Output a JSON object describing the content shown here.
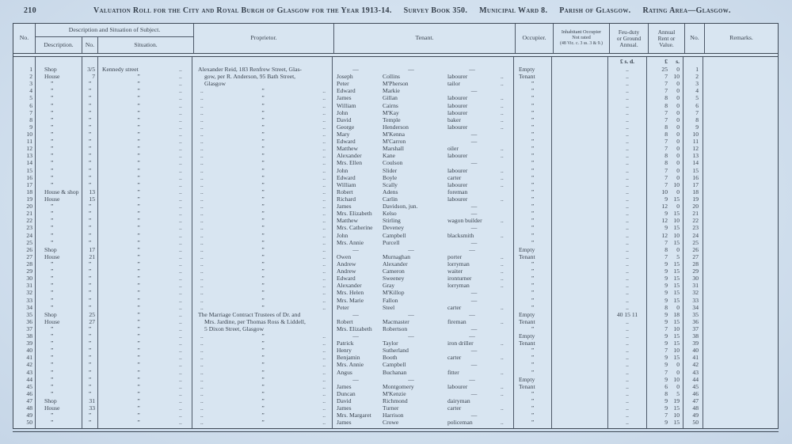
{
  "page": {
    "number": "210",
    "title": "Valuation Roll for the City and Royal Burgh of Glasgow for the Year 1913-14.",
    "survey_book": "Survey Book 350.",
    "ward": "Municipal Ward 8.",
    "parish": "Parish of Glasgow.",
    "rating_area": "Rating Area—Glasgow."
  },
  "table": {
    "col_no": "No.",
    "group_header": "Description and Situation of Subject.",
    "sub_description": "Description.",
    "sub_no": "No.",
    "sub_situation": "Situation.",
    "col_proprietor": "Proprietor.",
    "col_tenant": "Tenant.",
    "col_occupier": "Occupier.",
    "col_inhabitant_1": "Inhabitant Occupier",
    "col_inhabitant_2": "Not rated",
    "col_inhabitant_3": "(48 Vic. c. 3 ss. 3 & 9.)",
    "col_feu_1": "Feu-duty",
    "col_feu_2": "or Ground",
    "col_feu_3": "Annual.",
    "col_value_1": "Annual",
    "col_value_2": "Rent or",
    "col_value_3": "Value.",
    "col_no2": "No.",
    "col_remarks": "Remarks.",
    "currency_feu": "£ s. d.",
    "currency_val_pounds": "£",
    "currency_val_shillings": "s.",
    "row_fields": [
      "no",
      "description",
      "street_no",
      "situation",
      "situation_dots",
      "proprietor_kind",
      "proprietor_text",
      "tenant_first",
      "tenant_last",
      "tenant_occupation",
      "tenant_dots",
      "occupier",
      "feu_duty",
      "value_pounds",
      "value_shillings",
      "no2"
    ],
    "rows": [
      [
        "1",
        "Shop",
        "3/5",
        "Kennedy street",
        "..",
        "t1",
        "Alexander Reid, 183 Renfrew Street, Glas-",
        "—",
        "—",
        "—",
        "",
        "Empty",
        "..",
        "25",
        "0",
        "1"
      ],
      [
        "2",
        "House",
        "7",
        "”",
        "..",
        "t2",
        "gow, per R. Anderson, 95 Bath Street,",
        "Joseph",
        "Collins",
        "labourer",
        "..",
        "Tenant",
        "..",
        "7",
        "10",
        "2"
      ],
      [
        "3",
        "”",
        "”",
        "”",
        "..",
        "t2",
        "Glasgow",
        "Peter",
        "M'Pherson",
        "tailor",
        "..",
        "”",
        "..",
        "7",
        "0",
        "3"
      ],
      [
        "4",
        "”",
        "”",
        "”",
        "..",
        "d",
        "",
        "Edward",
        "Markie",
        "—",
        "",
        "”",
        "..",
        "7",
        "0",
        "4"
      ],
      [
        "5",
        "”",
        "”",
        "”",
        "..",
        "d",
        "",
        "James",
        "Gillan",
        "labourer",
        "..",
        "”",
        "..",
        "8",
        "0",
        "5"
      ],
      [
        "6",
        "”",
        "”",
        "”",
        "..",
        "d",
        "",
        "William",
        "Cairns",
        "labourer",
        "..",
        "”",
        "..",
        "8",
        "0",
        "6"
      ],
      [
        "7",
        "”",
        "”",
        "”",
        "..",
        "d",
        "",
        "John",
        "M'Kay",
        "labourer",
        "..",
        "”",
        "..",
        "7",
        "0",
        "7"
      ],
      [
        "8",
        "”",
        "”",
        "”",
        "..",
        "d",
        "",
        "David",
        "Temple",
        "baker",
        "..",
        "”",
        "..",
        "7",
        "0",
        "8"
      ],
      [
        "9",
        "”",
        "”",
        "”",
        "..",
        "d",
        "",
        "George",
        "Henderson",
        "labourer",
        "..",
        "”",
        "..",
        "8",
        "0",
        "9"
      ],
      [
        "10",
        "”",
        "”",
        "”",
        "..",
        "d",
        "",
        "Mary",
        "M'Kenna",
        "—",
        "",
        "”",
        "..",
        "8",
        "0",
        "10"
      ],
      [
        "11",
        "”",
        "”",
        "”",
        "..",
        "d",
        "",
        "Edward",
        "M'Carron",
        "—",
        "",
        "”",
        "..",
        "7",
        "0",
        "11"
      ],
      [
        "12",
        "”",
        "”",
        "”",
        "..",
        "d",
        "",
        "Matthew",
        "Marshall",
        "oiler",
        "..",
        "”",
        "..",
        "7",
        "0",
        "12"
      ],
      [
        "13",
        "”",
        "”",
        "”",
        "..",
        "d",
        "",
        "Alexander",
        "Kane",
        "labourer",
        "..",
        "”",
        "..",
        "8",
        "0",
        "13"
      ],
      [
        "14",
        "”",
        "”",
        "”",
        "..",
        "d",
        "",
        "Mrs. Ellen",
        "Coulson",
        "—",
        "",
        "”",
        "..",
        "8",
        "0",
        "14"
      ],
      [
        "15",
        "”",
        "”",
        "”",
        "..",
        "d",
        "",
        "John",
        "Slider",
        "labourer",
        "..",
        "”",
        "..",
        "7",
        "0",
        "15"
      ],
      [
        "16",
        "”",
        "”",
        "”",
        "..",
        "d",
        "",
        "Edward",
        "Boyle",
        "carter",
        "..",
        "”",
        "..",
        "7",
        "0",
        "16"
      ],
      [
        "17",
        "”",
        "”",
        "”",
        "..",
        "d",
        "",
        "William",
        "Scally",
        "labourer",
        "..",
        "”",
        "..",
        "7",
        "10",
        "17"
      ],
      [
        "18",
        "House & shop",
        "13",
        "”",
        "..",
        "d",
        "",
        "Robert",
        "Adens",
        "foreman",
        "",
        "”",
        "..",
        "10",
        "0",
        "18"
      ],
      [
        "19",
        "House",
        "15",
        "”",
        "..",
        "d",
        "",
        "Richard",
        "Carlin",
        "labourer",
        "..",
        "”",
        "..",
        "9",
        "15",
        "19"
      ],
      [
        "20",
        "”",
        "”",
        "”",
        "..",
        "d",
        "",
        "James",
        "Davidson, jun.",
        "—",
        "",
        "”",
        "..",
        "12",
        "0",
        "20"
      ],
      [
        "21",
        "”",
        "”",
        "”",
        "..",
        "d",
        "",
        "Mrs. Elizabeth",
        "Kelso",
        "—",
        "",
        "”",
        "..",
        "9",
        "15",
        "21"
      ],
      [
        "22",
        "”",
        "”",
        "”",
        "..",
        "d",
        "",
        "Matthew",
        "Stirling",
        "wagon builder",
        "..",
        "”",
        "..",
        "12",
        "10",
        "22"
      ],
      [
        "23",
        "”",
        "”",
        "”",
        "..",
        "d",
        "",
        "Mrs. Catherine",
        "Deveney",
        "—",
        "",
        "”",
        "..",
        "9",
        "15",
        "23"
      ],
      [
        "24",
        "”",
        "”",
        "”",
        "..",
        "d",
        "",
        "John",
        "Campbell",
        "blacksmith",
        "..",
        "”",
        "..",
        "12",
        "10",
        "24"
      ],
      [
        "25",
        "”",
        "”",
        "”",
        "..",
        "d",
        "",
        "Mrs. Annie",
        "Purcell",
        "—",
        "",
        "”",
        "..",
        "7",
        "15",
        "25"
      ],
      [
        "26",
        "Shop",
        "17",
        "”",
        "..",
        "d",
        "",
        "—",
        "—",
        "—",
        "",
        "Empty",
        "..",
        "8",
        "0",
        "26"
      ],
      [
        "27",
        "House",
        "21",
        "”",
        "..",
        "d",
        "",
        "Owen",
        "Murnaghan",
        "porter",
        "..",
        "Tenant",
        "..",
        "7",
        "5",
        "27"
      ],
      [
        "28",
        "”",
        "”",
        "”",
        "..",
        "d",
        "",
        "Andrew",
        "Alexander",
        "lorryman",
        "..",
        "”",
        "..",
        "9",
        "15",
        "28"
      ],
      [
        "29",
        "”",
        "”",
        "”",
        "..",
        "d",
        "",
        "Andrew",
        "Cameron",
        "waiter",
        "..",
        "”",
        "..",
        "9",
        "15",
        "29"
      ],
      [
        "30",
        "”",
        "”",
        "”",
        "..",
        "d",
        "",
        "Edward",
        "Sweeney",
        "ironturner",
        "..",
        "”",
        "..",
        "9",
        "15",
        "30"
      ],
      [
        "31",
        "”",
        "”",
        "”",
        "..",
        "d",
        "",
        "Alexander",
        "Gray",
        "lorryman",
        "..",
        "”",
        "..",
        "9",
        "15",
        "31"
      ],
      [
        "32",
        "”",
        "”",
        "”",
        "..",
        "d",
        "",
        "Mrs. Helen",
        "M'Killop",
        "—",
        "",
        "”",
        "..",
        "9",
        "15",
        "32"
      ],
      [
        "33",
        "”",
        "”",
        "”",
        "..",
        "d",
        "",
        "Mrs. Marie",
        "Fallon",
        "—",
        "",
        "”",
        "..",
        "9",
        "15",
        "33"
      ],
      [
        "34",
        "”",
        "”",
        "”",
        "..",
        "d",
        "",
        "Peter",
        "Steel",
        "carter",
        "..",
        "”",
        "..",
        "8",
        "0",
        "34"
      ],
      [
        "35",
        "Shop",
        "25",
        "”",
        "..",
        "t1",
        "The Marriage Contract Trustees of Dr. and",
        "—",
        "—",
        "—",
        "",
        "Empty",
        "40 15 11",
        "9",
        "18",
        "35"
      ],
      [
        "36",
        "House",
        "27",
        "”",
        "..",
        "t2",
        "Mrs. Jardine, per Thomas Ross & Liddell,",
        "Robert",
        "Macmaster",
        "fireman",
        "..",
        "Tenant",
        "..",
        "9",
        "15",
        "36"
      ],
      [
        "37",
        "”",
        "”",
        "”",
        "..",
        "t2",
        "5 Dixon Street, Glasgow",
        "Mrs. Elizabeth",
        "Robertson",
        "—",
        "",
        "”",
        "..",
        "7",
        "10",
        "37"
      ],
      [
        "38",
        "”",
        "”",
        "”",
        "..",
        "d",
        "",
        "—",
        "—",
        "—",
        "",
        "Empty",
        "..",
        "9",
        "15",
        "38"
      ],
      [
        "39",
        "”",
        "”",
        "”",
        "..",
        "d",
        "",
        "Patrick",
        "Taylor",
        "iron driller",
        "..",
        "Tenant",
        "..",
        "9",
        "15",
        "39"
      ],
      [
        "40",
        "”",
        "”",
        "”",
        "..",
        "d",
        "",
        "Henry",
        "Sutherland",
        "—",
        "",
        "”",
        "..",
        "7",
        "10",
        "40"
      ],
      [
        "41",
        "”",
        "”",
        "”",
        "..",
        "d",
        "",
        "Benjamin",
        "Booth",
        "carter",
        "..",
        "”",
        "..",
        "9",
        "15",
        "41"
      ],
      [
        "42",
        "”",
        "”",
        "”",
        "..",
        "d",
        "",
        "Mrs. Annie",
        "Campbell",
        "—",
        "",
        "”",
        "..",
        "9",
        "0",
        "42"
      ],
      [
        "43",
        "”",
        "”",
        "”",
        "..",
        "d",
        "",
        "Angus",
        "Buchanan",
        "fitter",
        "..",
        "”",
        "..",
        "7",
        "0",
        "43"
      ],
      [
        "44",
        "”",
        "”",
        "”",
        "..",
        "d",
        "",
        "—",
        "—",
        "—",
        "",
        "Empty",
        "..",
        "9",
        "10",
        "44"
      ],
      [
        "45",
        "”",
        "”",
        "”",
        "..",
        "d",
        "",
        "James",
        "Montgomery",
        "labourer",
        "..",
        "Tenant",
        "..",
        "6",
        "0",
        "45"
      ],
      [
        "46",
        "”",
        "”",
        "”",
        "..",
        "d",
        "",
        "Duncan",
        "M'Kenzie",
        "—",
        "..",
        "”",
        "..",
        "8",
        "5",
        "46"
      ],
      [
        "47",
        "Shop",
        "31",
        "”",
        "..",
        "d",
        "",
        "David",
        "Richmond",
        "dairyman",
        "",
        "”",
        "..",
        "9",
        "19",
        "47"
      ],
      [
        "48",
        "House",
        "33",
        "”",
        "..",
        "d",
        "",
        "James",
        "Turner",
        "carter",
        "..",
        "”",
        "..",
        "9",
        "15",
        "48"
      ],
      [
        "49",
        "”",
        "”",
        "”",
        "..",
        "d",
        "",
        "Mrs. Margaret",
        "Harrison",
        "—",
        "",
        "”",
        "..",
        "7",
        "10",
        "49"
      ],
      [
        "50",
        "”",
        "”",
        "”",
        "..",
        "d",
        "",
        "James",
        "Crowe",
        "policeman",
        "..",
        "”",
        "..",
        "9",
        "15",
        "50"
      ]
    ]
  }
}
